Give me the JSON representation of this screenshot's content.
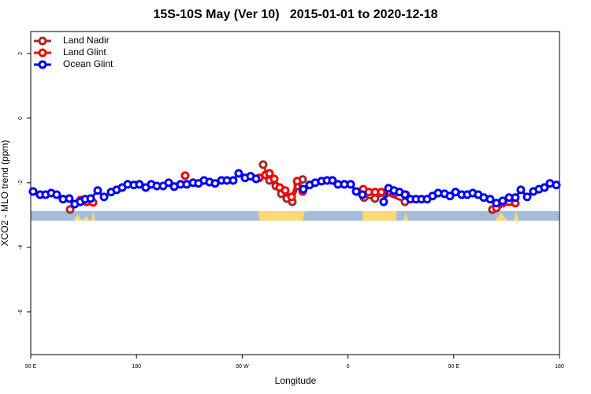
{
  "chart_data": {
    "type": "line",
    "title": "15S-10S May (Ver 10)   2015-01-01 to 2020-12-18",
    "xlabel": "Longitude",
    "ylabel": "XCO2 - MLO trend (ppm)",
    "xlim": [
      90,
      540
    ],
    "ylim": [
      -7.32,
      2.68
    ],
    "xticks": [
      {
        "value": 90,
        "label": "90 E"
      },
      180,
      {
        "value": 270,
        "label": "90 W"
      },
      {
        "value": 360,
        "label": "0"
      },
      {
        "value": 450,
        "label": "90 E"
      },
      {
        "value": 540,
        "label": "180"
      }
    ],
    "yticks": [
      2,
      0,
      -2,
      -4,
      -6
    ],
    "legend": "topleft",
    "series": [
      {
        "name": "Land Nadir",
        "color": "#a52a2a",
        "x": [
          123.5,
          131.6,
          null,
          287.8,
          293.2,
          298.6,
          303.3,
          307.9,
          312.6,
          317.3,
          321.4,
          null,
          373.7,
          383.0,
          391.8,
          408.5,
          null,
          482.9,
          488.3,
          493.7
        ],
        "values": [
          -2.83,
          -2.59,
          null,
          -1.44,
          -1.93,
          -2.1,
          -2.34,
          -2.49,
          -2.59,
          -2.1,
          -1.9,
          null,
          -2.46,
          -2.49,
          -2.34,
          -2.59,
          null,
          -2.83,
          -2.68,
          -2.59
        ]
      },
      {
        "name": "Land Glint",
        "color": "#ff0000",
        "x": [
          132.2,
          137.6,
          143.0,
          null,
          221.4,
          null,
          284.5,
          289.8,
          293.2,
          297.2,
          301.9,
          306.6,
          312.0,
          316.7,
          321.4,
          null,
          373.0,
          377.7,
          383.0,
          388.4,
          394.5,
          399.8,
          409.2,
          null,
          486.3,
          491.7,
          497.1,
          502.4
        ],
        "values": [
          -2.54,
          -2.59,
          -2.61,
          null,
          -1.78,
          null,
          -1.85,
          -1.76,
          -1.71,
          -1.88,
          -2.15,
          -2.24,
          -2.44,
          -1.95,
          -2.27,
          null,
          -2.2,
          -2.29,
          -2.29,
          -2.29,
          -2.27,
          -2.32,
          -2.37,
          null,
          -2.78,
          -2.63,
          -2.59,
          -2.63
        ]
      },
      {
        "name": "Ocean Glint",
        "color": "#0000ff",
        "x": [
          92.0,
          98.0,
          102.7,
          107.4,
          112.1,
          117.5,
          122.8,
          127.5,
          132.2,
          136.3,
          141.0,
          147.0,
          152.4,
          158.4,
          163.1,
          167.8,
          172.5,
          177.8,
          182.5,
          187.9,
          192.6,
          197.3,
          202.7,
          207.4,
          212.1,
          217.5,
          222.8,
          228.2,
          232.8,
          237.5,
          242.2,
          246.9,
          252.3,
          257.0,
          262.3,
          267.0,
          272.4,
          277.1,
          281.8,
          null,
          322.0,
          327.4,
          332.1,
          337.5,
          342.2,
          346.8,
          351.5,
          356.9,
          362.3,
          367.0,
          372.3,
          null,
          390.4,
          394.5,
          399.2,
          403.8,
          408.5,
          413.2,
          417.9,
          422.6,
          427.3,
          432.0,
          436.7,
          442.1,
          446.8,
          451.5,
          456.8,
          461.5,
          466.2,
          470.9,
          475.6,
          481.0,
          486.3,
          491.7,
          497.1,
          502.4,
          507.1,
          512.5,
          517.8,
          522.5,
          527.2,
          531.9,
          537.3
        ],
        "values": [
          -2.27,
          -2.37,
          -2.37,
          -2.32,
          -2.37,
          -2.51,
          -2.49,
          -2.66,
          -2.59,
          -2.51,
          -2.49,
          -2.24,
          -2.44,
          -2.29,
          -2.22,
          -2.15,
          -2.05,
          -2.07,
          -2.05,
          -2.15,
          -2.05,
          -2.1,
          -2.1,
          -2.0,
          -2.12,
          -2.05,
          -2.05,
          -2.0,
          -2.02,
          -1.93,
          -1.98,
          -2.02,
          -1.93,
          -1.93,
          -1.93,
          -1.71,
          -1.85,
          -1.8,
          -1.88,
          null,
          -2.2,
          -2.07,
          -2.0,
          -1.95,
          -1.93,
          -1.93,
          -2.05,
          -2.05,
          -2.05,
          -2.27,
          -2.37,
          null,
          -2.59,
          -2.17,
          -2.24,
          -2.29,
          -2.37,
          -2.51,
          -2.51,
          -2.51,
          -2.51,
          -2.41,
          -2.32,
          -2.34,
          -2.41,
          -2.29,
          -2.37,
          -2.37,
          -2.32,
          -2.37,
          -2.46,
          -2.51,
          -2.63,
          -2.56,
          -2.46,
          -2.46,
          -2.22,
          -2.44,
          -2.27,
          -2.2,
          -2.15,
          -2.02,
          -2.07
        ]
      }
    ]
  }
}
